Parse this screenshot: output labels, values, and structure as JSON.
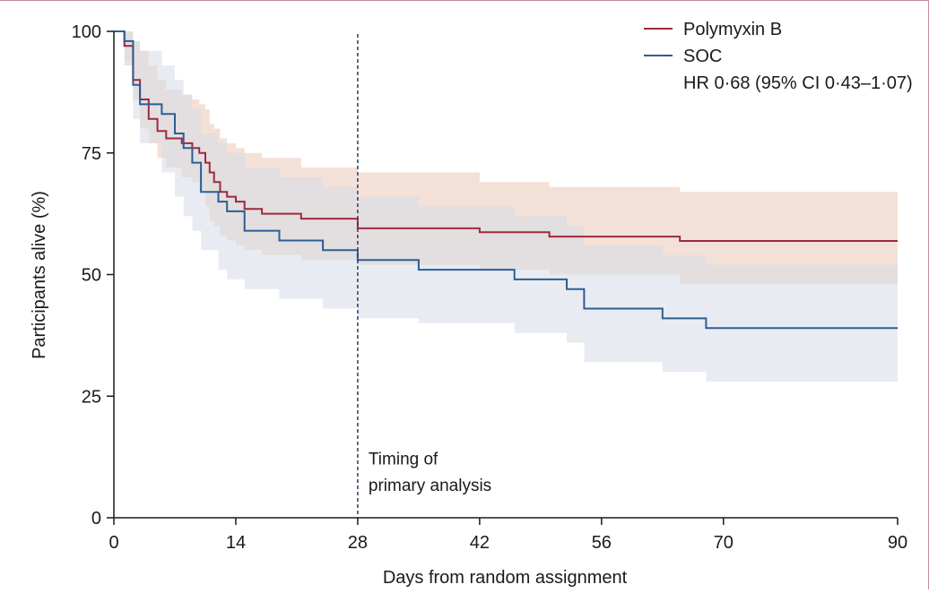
{
  "chart_data": {
    "type": "line",
    "title": "",
    "xlabel": "Days from random assignment",
    "ylabel": "Participants alive (%)",
    "xlim": [
      0,
      90
    ],
    "ylim": [
      0,
      100
    ],
    "x_ticks": [
      0,
      14,
      28,
      42,
      56,
      70,
      90
    ],
    "y_ticks": [
      0,
      25,
      50,
      75,
      100
    ],
    "grid": false,
    "legend": {
      "position": "top-right",
      "entries": [
        "Polymyxin B",
        "SOC"
      ],
      "note": "HR 0·68 (95% CI 0·43–1·07)"
    },
    "annotation": {
      "x": 28,
      "line1": "Timing of",
      "line2": "primary analysis"
    },
    "series": [
      {
        "name": "Polymyxin B",
        "color": "#9e2a3f",
        "band_color": "#e9c8b8",
        "x": [
          0,
          1.2,
          2.2,
          3.0,
          4.0,
          5.0,
          6.0,
          7.8,
          9.0,
          9.8,
          10.5,
          11.0,
          11.5,
          12.2,
          13.0,
          14.0,
          15.0,
          17.0,
          21.5,
          28.0,
          42.0,
          50.0,
          65.0,
          90.0
        ],
        "y": [
          100,
          97,
          90,
          86,
          82,
          79.5,
          78,
          77,
          76,
          75,
          73,
          71,
          69,
          67,
          66,
          65,
          63.5,
          62.5,
          61.5,
          59.5,
          58.7,
          57.8,
          56.9,
          56.9
        ],
        "lower": [
          100,
          93,
          86,
          80,
          77,
          74,
          72,
          70,
          69,
          67,
          64,
          61,
          60,
          58,
          57,
          56,
          55,
          54,
          53,
          52,
          51,
          50,
          48,
          48
        ],
        "upper": [
          100,
          100,
          98,
          96,
          93,
          90,
          88,
          87,
          86,
          85,
          84,
          81,
          80,
          78,
          77,
          76,
          75,
          74,
          72,
          71,
          69,
          68,
          67,
          67
        ]
      },
      {
        "name": "SOC",
        "color": "#2c5e93",
        "band_color": "#d6dce8",
        "x": [
          0,
          1.2,
          2.2,
          3.0,
          5.5,
          7.0,
          8.0,
          9.0,
          10.0,
          12.0,
          13.0,
          15.0,
          19.0,
          24.0,
          28.0,
          35.0,
          46.0,
          52.0,
          54.0,
          63.0,
          68.0,
          90.0
        ],
        "y": [
          100,
          98,
          89,
          85,
          83,
          79,
          76,
          73,
          67,
          65,
          63,
          59,
          57,
          55,
          53,
          51,
          49,
          47,
          43,
          41,
          39,
          39
        ],
        "lower": [
          100,
          94,
          82,
          77,
          71,
          66,
          62,
          59,
          55,
          51,
          49,
          47,
          45,
          43,
          41,
          40,
          38,
          36,
          32,
          30,
          28,
          28
        ],
        "upper": [
          100,
          100,
          98,
          96,
          93,
          90,
          87,
          84,
          79,
          77,
          75,
          72,
          70,
          68,
          66,
          64,
          62,
          60,
          56,
          54,
          52,
          52
        ]
      }
    ]
  }
}
